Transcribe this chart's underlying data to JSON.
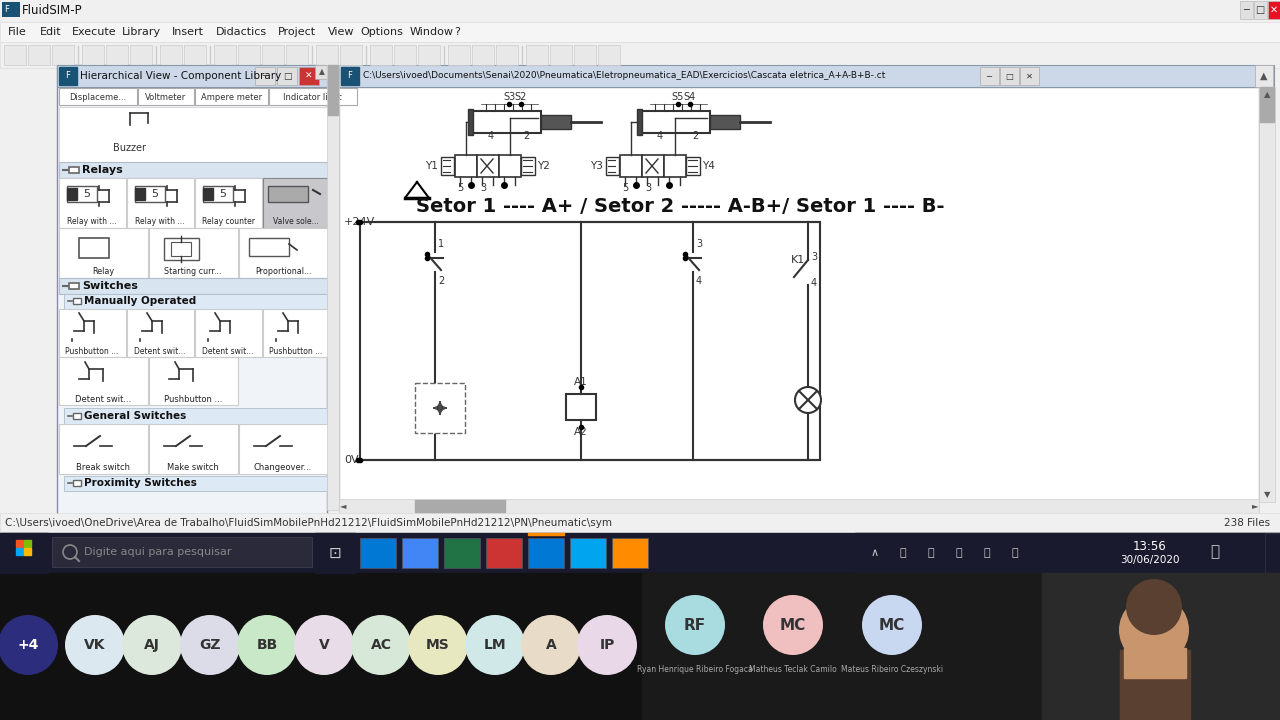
{
  "title": "FluidSIM-P",
  "setor_text": "Setor 1 ---- A+ / Setor 2 ----- A-B+/ Setor 1 ---- B-",
  "plus24v_label": "+24V",
  "zero_v_label": "0V",
  "k1_label": "K1",
  "file_path": "C:\\Users\\ivoed\\Documents\\Senai\\2020\\Pneumatica\\Eletropneumatica_EAD\\Exercicios\\Cascata eletrica_A+A-B+B-.ct",
  "status_path": "C:\\Users\\ivoed\\OneDrive\\\\Area de Trabalho\\FluidSimMobilePnHd21212\\FluidSimMobilePnHd21212\\PN\\Pneumatic\\sym",
  "files_count": "238 Files",
  "taskbar_avatars": [
    "+4",
    "VK",
    "AJ",
    "GZ",
    "BB",
    "V",
    "AC",
    "MS",
    "LM",
    "A",
    "IP"
  ],
  "taskbar_avatar_colors": [
    "#2d2d7e",
    "#dce8f0",
    "#dce8dc",
    "#dcdce8",
    "#c8e8c8",
    "#e8dce8",
    "#d8e8d8",
    "#e8e8c0",
    "#d0e8e8",
    "#e8dcc8",
    "#e8d8e8"
  ],
  "zoom_avatars": [
    "RF",
    "MC",
    "MC"
  ],
  "zoom_avatar_colors": [
    "#a8dce0",
    "#f0c0c0",
    "#c8d8f0"
  ],
  "zoom_names": [
    "Ryan Henrique Ribeiro Fogaca",
    "Matheus Teclak Camilo",
    "Mateus Ribeiro Czeszynski"
  ]
}
